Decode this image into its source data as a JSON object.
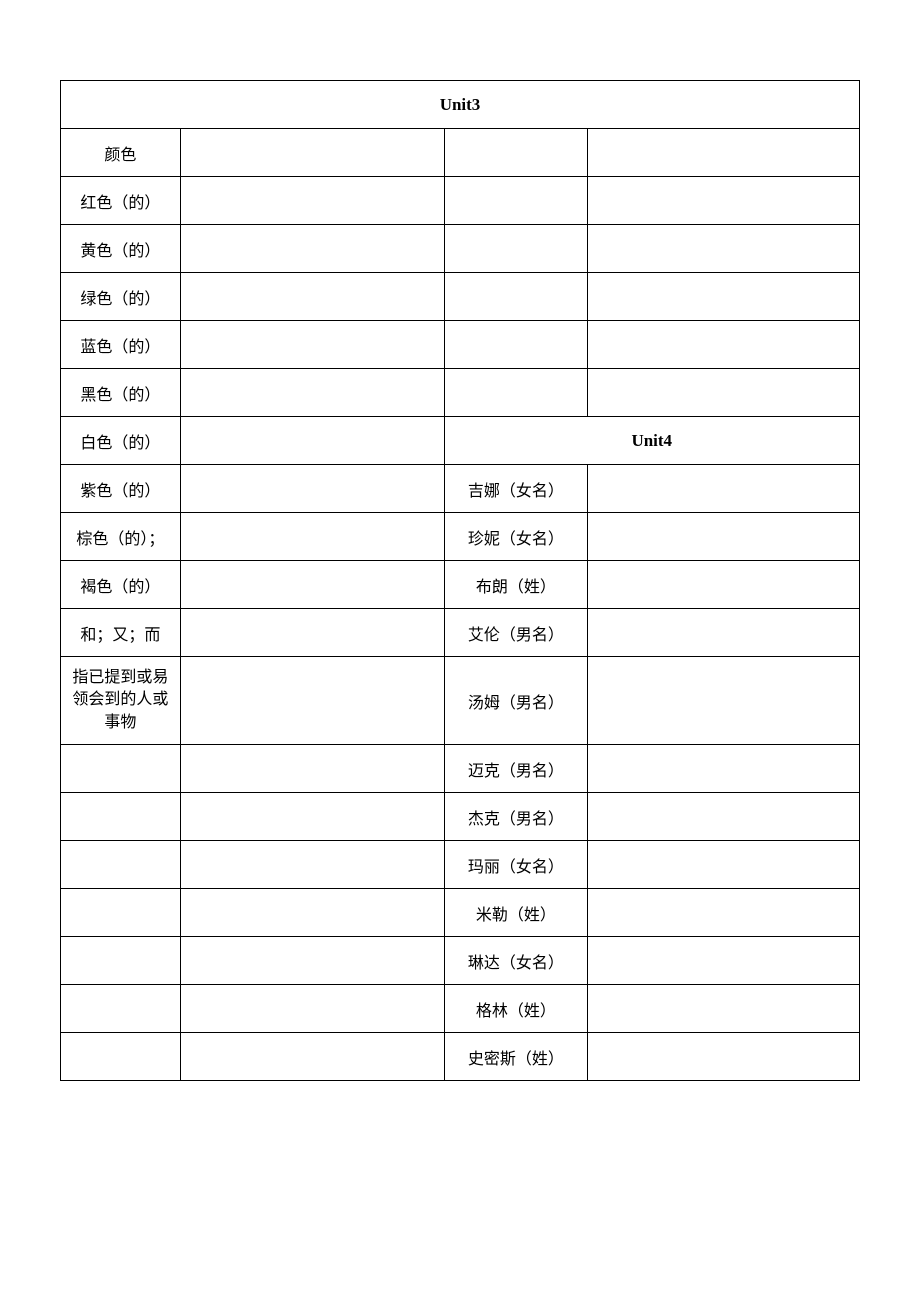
{
  "table": {
    "header1": "Unit3",
    "header2": "Unit4",
    "rows": [
      {
        "c1": "颜色",
        "c2": "",
        "c3": "",
        "c4": ""
      },
      {
        "c1": "红色（的）",
        "c2": "",
        "c3": "",
        "c4": ""
      },
      {
        "c1": "黄色（的）",
        "c2": "",
        "c3": "",
        "c4": ""
      },
      {
        "c1": "绿色（的）",
        "c2": "",
        "c3": "",
        "c4": ""
      },
      {
        "c1": "蓝色（的）",
        "c2": "",
        "c3": "",
        "c4": ""
      },
      {
        "c1": "黑色（的）",
        "c2": "",
        "c3": "",
        "c4": ""
      },
      {
        "c1": "白色（的）",
        "c2": ""
      },
      {
        "c1": "紫色（的）",
        "c2": "",
        "c3": "吉娜（女名）",
        "c4": ""
      },
      {
        "c1": "棕色（的）；",
        "c2": "",
        "c3": "珍妮（女名）",
        "c4": ""
      },
      {
        "c1": "褐色（的）",
        "c2": "",
        "c3": "布朗（姓）",
        "c4": ""
      },
      {
        "c1": "和；又；而",
        "c2": "",
        "c3": "艾伦（男名）",
        "c4": ""
      },
      {
        "c1": "指已提到或易领会到的人或事物",
        "c2": "",
        "c3": "汤姆（男名）",
        "c4": ""
      },
      {
        "c1": "",
        "c2": "",
        "c3": "迈克（男名）",
        "c4": ""
      },
      {
        "c1": "",
        "c2": "",
        "c3": "杰克（男名）",
        "c4": ""
      },
      {
        "c1": "",
        "c2": "",
        "c3": "玛丽（女名）",
        "c4": ""
      },
      {
        "c1": "",
        "c2": "",
        "c3": "米勒（姓）",
        "c4": ""
      },
      {
        "c1": "",
        "c2": "",
        "c3": "琳达（女名）",
        "c4": ""
      },
      {
        "c1": "",
        "c2": "",
        "c3": "格林（姓）",
        "c4": ""
      },
      {
        "c1": "",
        "c2": "",
        "c3": "史密斯（姓）",
        "c4": ""
      }
    ]
  }
}
